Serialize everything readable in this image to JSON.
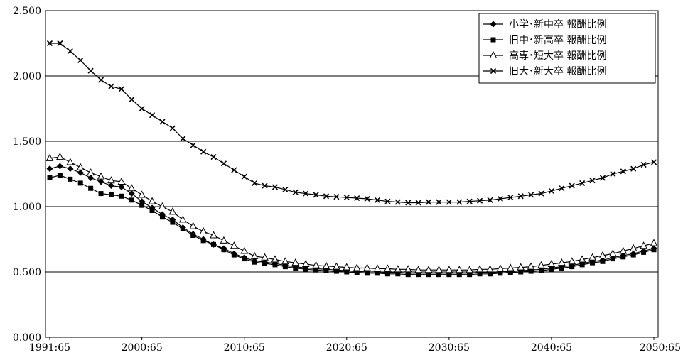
{
  "chart_data": {
    "type": "line",
    "title": "",
    "xlabel": "",
    "ylabel": "",
    "ylim": [
      0,
      2.5
    ],
    "yticks": [
      "0.000",
      "0.500",
      "1.000",
      "1.500",
      "2.000",
      "2.500"
    ],
    "xrange": [
      1991,
      2050
    ],
    "xtick_labels": [
      {
        "x": 1991,
        "label": "1991:65"
      },
      {
        "x": 2000,
        "label": "2000:65"
      },
      {
        "x": 2010,
        "label": "2010:65"
      },
      {
        "x": 2020,
        "label": "2020:65"
      },
      {
        "x": 2030,
        "label": "2030:65"
      },
      {
        "x": 2040,
        "label": "2040:65"
      },
      {
        "x": 2050,
        "label": "2050:65"
      }
    ],
    "grid": "horizontal",
    "legend_position": "top-right",
    "series": [
      {
        "name": "小学･新中卒 報酬比例",
        "marker": "diamond",
        "points": [
          [
            1991,
            1.29
          ],
          [
            1992,
            1.31
          ],
          [
            1993,
            1.29
          ],
          [
            1994,
            1.26
          ],
          [
            1995,
            1.22
          ],
          [
            1996,
            1.19
          ],
          [
            1997,
            1.16
          ],
          [
            1998,
            1.15
          ],
          [
            1999,
            1.1
          ],
          [
            2000,
            1.04
          ],
          [
            2001,
            0.99
          ],
          [
            2002,
            0.94
          ],
          [
            2003,
            0.9
          ],
          [
            2004,
            0.84
          ],
          [
            2005,
            0.79
          ],
          [
            2006,
            0.75
          ],
          [
            2007,
            0.71
          ],
          [
            2008,
            0.68
          ],
          [
            2009,
            0.64
          ],
          [
            2010,
            0.61
          ],
          [
            2011,
            0.585
          ],
          [
            2012,
            0.575
          ],
          [
            2013,
            0.565
          ],
          [
            2014,
            0.55
          ],
          [
            2015,
            0.54
          ],
          [
            2016,
            0.53
          ],
          [
            2017,
            0.525
          ],
          [
            2018,
            0.52
          ],
          [
            2019,
            0.515
          ],
          [
            2020,
            0.51
          ],
          [
            2021,
            0.505
          ],
          [
            2022,
            0.5
          ],
          [
            2023,
            0.5
          ],
          [
            2024,
            0.495
          ],
          [
            2025,
            0.495
          ],
          [
            2026,
            0.49
          ],
          [
            2027,
            0.49
          ],
          [
            2028,
            0.49
          ],
          [
            2029,
            0.49
          ],
          [
            2030,
            0.49
          ],
          [
            2031,
            0.49
          ],
          [
            2032,
            0.49
          ],
          [
            2033,
            0.495
          ],
          [
            2034,
            0.495
          ],
          [
            2035,
            0.5
          ],
          [
            2036,
            0.505
          ],
          [
            2037,
            0.51
          ],
          [
            2038,
            0.515
          ],
          [
            2039,
            0.52
          ],
          [
            2040,
            0.53
          ],
          [
            2041,
            0.54
          ],
          [
            2042,
            0.55
          ],
          [
            2043,
            0.565
          ],
          [
            2044,
            0.58
          ],
          [
            2045,
            0.59
          ],
          [
            2046,
            0.61
          ],
          [
            2047,
            0.625
          ],
          [
            2048,
            0.64
          ],
          [
            2049,
            0.66
          ],
          [
            2050,
            0.68
          ]
        ]
      },
      {
        "name": "旧中･新高卒 報酬比例",
        "marker": "square",
        "points": [
          [
            1991,
            1.22
          ],
          [
            1992,
            1.24
          ],
          [
            1993,
            1.21
          ],
          [
            1994,
            1.18
          ],
          [
            1995,
            1.14
          ],
          [
            1996,
            1.1
          ],
          [
            1997,
            1.09
          ],
          [
            1998,
            1.08
          ],
          [
            1999,
            1.05
          ],
          [
            2000,
            1.01
          ],
          [
            2001,
            0.97
          ],
          [
            2002,
            0.92
          ],
          [
            2003,
            0.88
          ],
          [
            2004,
            0.83
          ],
          [
            2005,
            0.78
          ],
          [
            2006,
            0.74
          ],
          [
            2007,
            0.71
          ],
          [
            2008,
            0.67
          ],
          [
            2009,
            0.63
          ],
          [
            2010,
            0.6
          ],
          [
            2011,
            0.575
          ],
          [
            2012,
            0.565
          ],
          [
            2013,
            0.555
          ],
          [
            2014,
            0.54
          ],
          [
            2015,
            0.53
          ],
          [
            2016,
            0.52
          ],
          [
            2017,
            0.515
          ],
          [
            2018,
            0.51
          ],
          [
            2019,
            0.505
          ],
          [
            2020,
            0.5
          ],
          [
            2021,
            0.495
          ],
          [
            2022,
            0.49
          ],
          [
            2023,
            0.49
          ],
          [
            2024,
            0.485
          ],
          [
            2025,
            0.485
          ],
          [
            2026,
            0.48
          ],
          [
            2027,
            0.48
          ],
          [
            2028,
            0.48
          ],
          [
            2029,
            0.48
          ],
          [
            2030,
            0.48
          ],
          [
            2031,
            0.48
          ],
          [
            2032,
            0.48
          ],
          [
            2033,
            0.485
          ],
          [
            2034,
            0.485
          ],
          [
            2035,
            0.49
          ],
          [
            2036,
            0.495
          ],
          [
            2037,
            0.5
          ],
          [
            2038,
            0.505
          ],
          [
            2039,
            0.51
          ],
          [
            2040,
            0.52
          ],
          [
            2041,
            0.53
          ],
          [
            2042,
            0.54
          ],
          [
            2043,
            0.555
          ],
          [
            2044,
            0.57
          ],
          [
            2045,
            0.58
          ],
          [
            2046,
            0.6
          ],
          [
            2047,
            0.615
          ],
          [
            2048,
            0.63
          ],
          [
            2049,
            0.65
          ],
          [
            2050,
            0.67
          ]
        ]
      },
      {
        "name": "高専･短大卒 報酬比例",
        "marker": "triangle-open",
        "points": [
          [
            1991,
            1.37
          ],
          [
            1992,
            1.38
          ],
          [
            1993,
            1.34
          ],
          [
            1994,
            1.3
          ],
          [
            1995,
            1.26
          ],
          [
            1996,
            1.23
          ],
          [
            1997,
            1.2
          ],
          [
            1998,
            1.19
          ],
          [
            1999,
            1.14
          ],
          [
            2000,
            1.09
          ],
          [
            2001,
            1.04
          ],
          [
            2002,
            1.0
          ],
          [
            2003,
            0.96
          ],
          [
            2004,
            0.9
          ],
          [
            2005,
            0.85
          ],
          [
            2006,
            0.81
          ],
          [
            2007,
            0.78
          ],
          [
            2008,
            0.74
          ],
          [
            2009,
            0.7
          ],
          [
            2010,
            0.66
          ],
          [
            2011,
            0.62
          ],
          [
            2012,
            0.61
          ],
          [
            2013,
            0.595
          ],
          [
            2014,
            0.58
          ],
          [
            2015,
            0.57
          ],
          [
            2016,
            0.56
          ],
          [
            2017,
            0.55
          ],
          [
            2018,
            0.545
          ],
          [
            2019,
            0.54
          ],
          [
            2020,
            0.535
          ],
          [
            2021,
            0.53
          ],
          [
            2022,
            0.53
          ],
          [
            2023,
            0.525
          ],
          [
            2024,
            0.525
          ],
          [
            2025,
            0.52
          ],
          [
            2026,
            0.52
          ],
          [
            2027,
            0.515
          ],
          [
            2028,
            0.515
          ],
          [
            2029,
            0.515
          ],
          [
            2030,
            0.515
          ],
          [
            2031,
            0.515
          ],
          [
            2032,
            0.515
          ],
          [
            2033,
            0.52
          ],
          [
            2034,
            0.52
          ],
          [
            2035,
            0.525
          ],
          [
            2036,
            0.53
          ],
          [
            2037,
            0.535
          ],
          [
            2038,
            0.54
          ],
          [
            2039,
            0.55
          ],
          [
            2040,
            0.56
          ],
          [
            2041,
            0.57
          ],
          [
            2042,
            0.58
          ],
          [
            2043,
            0.595
          ],
          [
            2044,
            0.61
          ],
          [
            2045,
            0.625
          ],
          [
            2046,
            0.64
          ],
          [
            2047,
            0.66
          ],
          [
            2048,
            0.68
          ],
          [
            2049,
            0.7
          ],
          [
            2050,
            0.72
          ]
        ]
      },
      {
        "name": "旧大･新大卒 報酬比例",
        "marker": "x",
        "points": [
          [
            1991,
            2.25
          ],
          [
            1992,
            2.25
          ],
          [
            1993,
            2.19
          ],
          [
            1994,
            2.12
          ],
          [
            1995,
            2.04
          ],
          [
            1996,
            1.97
          ],
          [
            1997,
            1.92
          ],
          [
            1998,
            1.9
          ],
          [
            1999,
            1.82
          ],
          [
            2000,
            1.75
          ],
          [
            2001,
            1.7
          ],
          [
            2002,
            1.65
          ],
          [
            2003,
            1.6
          ],
          [
            2004,
            1.52
          ],
          [
            2005,
            1.47
          ],
          [
            2006,
            1.42
          ],
          [
            2007,
            1.38
          ],
          [
            2008,
            1.33
          ],
          [
            2009,
            1.28
          ],
          [
            2010,
            1.23
          ],
          [
            2011,
            1.18
          ],
          [
            2012,
            1.16
          ],
          [
            2013,
            1.15
          ],
          [
            2014,
            1.13
          ],
          [
            2015,
            1.11
          ],
          [
            2016,
            1.1
          ],
          [
            2017,
            1.09
          ],
          [
            2018,
            1.08
          ],
          [
            2019,
            1.075
          ],
          [
            2020,
            1.07
          ],
          [
            2021,
            1.065
          ],
          [
            2022,
            1.06
          ],
          [
            2023,
            1.05
          ],
          [
            2024,
            1.04
          ],
          [
            2025,
            1.035
          ],
          [
            2026,
            1.03
          ],
          [
            2027,
            1.03
          ],
          [
            2028,
            1.035
          ],
          [
            2029,
            1.035
          ],
          [
            2030,
            1.035
          ],
          [
            2031,
            1.035
          ],
          [
            2032,
            1.04
          ],
          [
            2033,
            1.045
          ],
          [
            2034,
            1.05
          ],
          [
            2035,
            1.06
          ],
          [
            2036,
            1.07
          ],
          [
            2037,
            1.08
          ],
          [
            2038,
            1.09
          ],
          [
            2039,
            1.1
          ],
          [
            2040,
            1.12
          ],
          [
            2041,
            1.14
          ],
          [
            2042,
            1.16
          ],
          [
            2043,
            1.18
          ],
          [
            2044,
            1.2
          ],
          [
            2045,
            1.22
          ],
          [
            2046,
            1.25
          ],
          [
            2047,
            1.27
          ],
          [
            2048,
            1.29
          ],
          [
            2049,
            1.32
          ],
          [
            2050,
            1.34
          ]
        ]
      }
    ]
  }
}
